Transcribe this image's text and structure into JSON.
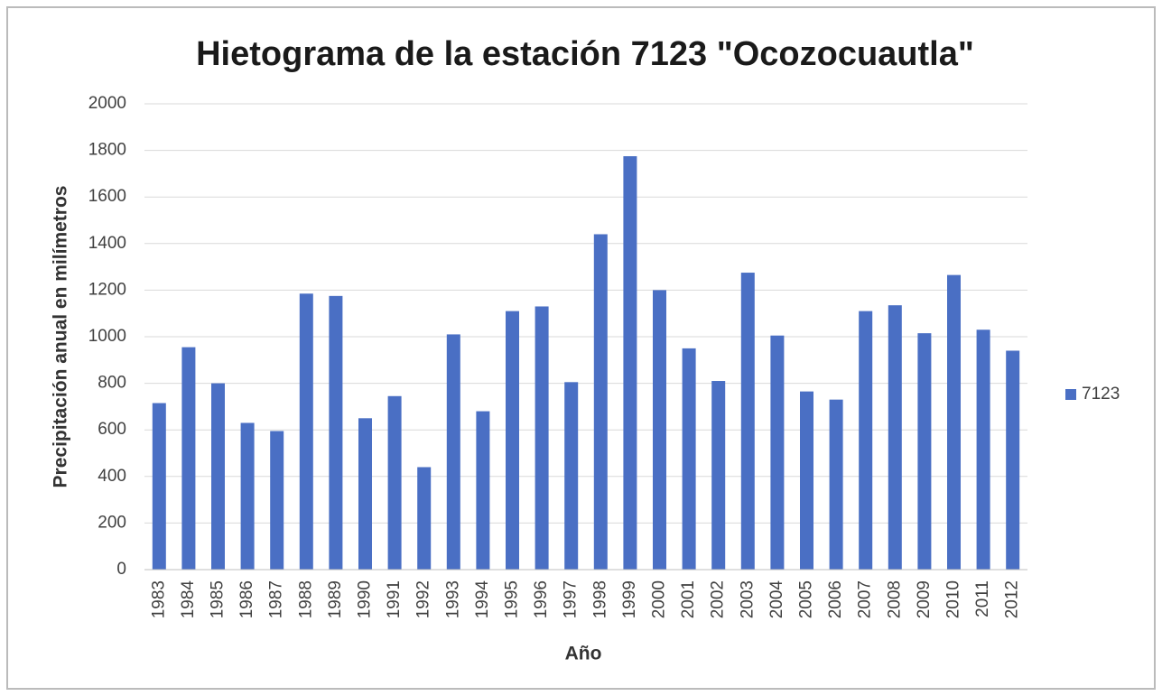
{
  "chart_data": {
    "type": "bar",
    "title": "Hietograma de la estación 7123 \"Ocozocuautla\"",
    "x_label": "Año",
    "y_label": "Precipitación anual en milímetros",
    "categories": [
      "1983",
      "1984",
      "1985",
      "1986",
      "1987",
      "1988",
      "1989",
      "1990",
      "1991",
      "1992",
      "1993",
      "1994",
      "1995",
      "1996",
      "1997",
      "1998",
      "1999",
      "2000",
      "2001",
      "2002",
      "2003",
      "2004",
      "2005",
      "2006",
      "2007",
      "2008",
      "2009",
      "2010",
      "2011",
      "2012"
    ],
    "series": [
      {
        "name": "7123",
        "color": "#4a6fc4",
        "values": [
          715,
          955,
          800,
          630,
          595,
          1185,
          1175,
          650,
          745,
          440,
          1010,
          680,
          1110,
          1130,
          805,
          1440,
          1775,
          1200,
          950,
          810,
          1275,
          1005,
          765,
          730,
          1110,
          1135,
          1015,
          1265,
          1030,
          940
        ]
      }
    ],
    "ylim": [
      0,
      2000
    ],
    "yticks": [
      0,
      200,
      400,
      600,
      800,
      1000,
      1200,
      1400,
      1600,
      1800,
      2000
    ],
    "grid": true,
    "legend": "right"
  }
}
